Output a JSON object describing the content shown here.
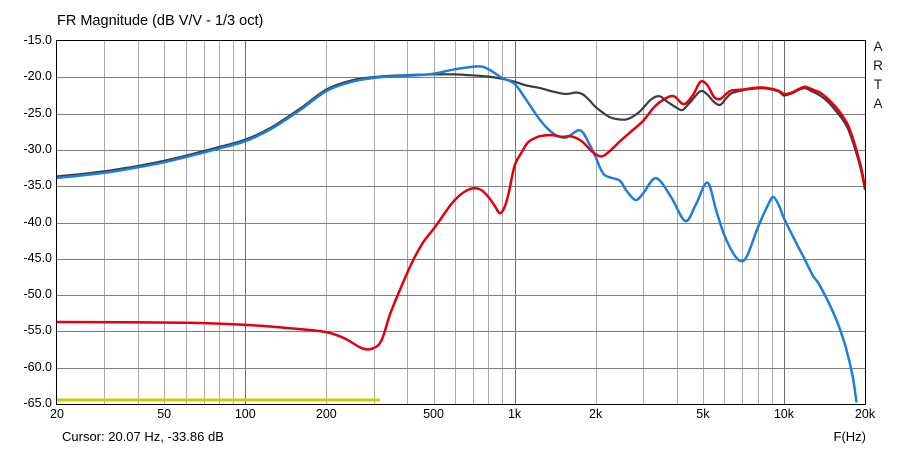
{
  "title": "FR Magnitude (dB V/V - 1/3 oct)",
  "watermark_letters": [
    "A",
    "R",
    "T",
    "A"
  ],
  "status": {
    "cursor": "Cursor: 20.07 Hz, -33.86 dB"
  },
  "colors": {
    "background": "#FFFFFF",
    "plot_border": "#000000",
    "grid_horizontal": "#7F7F7F",
    "grid_minor_vertical": "#ABABAB",
    "grid_major_vertical": "#6E6E6E",
    "trace_sum_black": "#3C3C3C",
    "trace_lowpass_blue": "#1E7EDC",
    "trace_highpass_red": "#E2000E",
    "marker_yellow": "#CCCC00"
  },
  "axes": {
    "x_unit_label": "F(Hz)",
    "f_min": 20,
    "f_max": 20000,
    "db_max": -15,
    "db_min": -65,
    "y_tick_labels": [
      "-15.0",
      "-20.0",
      "-25.0",
      "-30.0",
      "-35.0",
      "-40.0",
      "-45.0",
      "-50.0",
      "-55.0",
      "-60.0",
      "-65.0"
    ],
    "y_grid": [
      -20,
      -25,
      -30,
      -35,
      -40,
      -45,
      -50,
      -55,
      -60
    ],
    "x_ticks": [
      {
        "f": 20,
        "label": "20"
      },
      {
        "f": 50,
        "label": "50"
      },
      {
        "f": 100,
        "label": "100"
      },
      {
        "f": 200,
        "label": "200"
      },
      {
        "f": 500,
        "label": "500"
      },
      {
        "f": 1000,
        "label": "1k"
      },
      {
        "f": 2000,
        "label": "2k"
      },
      {
        "f": 5000,
        "label": "5k"
      },
      {
        "f": 10000,
        "label": "10k"
      },
      {
        "f": 20000,
        "label": "20k"
      }
    ],
    "x_grid_minor": [
      30,
      40,
      50,
      60,
      70,
      80,
      90,
      200,
      300,
      400,
      500,
      600,
      700,
      800,
      900,
      2000,
      3000,
      4000,
      5000,
      6000,
      7000,
      8000,
      9000
    ],
    "x_grid_major": [
      100,
      1000,
      10000
    ]
  },
  "chart_data": {
    "type": "line",
    "title": "FR Magnitude (dB V/V - 1/3 oct)",
    "xlabel": "F(Hz)",
    "ylabel": "dB V/V",
    "x_scale": "log",
    "x_range": [
      20,
      20000
    ],
    "y_range": [
      -65,
      -15
    ],
    "grid": true,
    "legend": "none",
    "series": [
      {
        "name": "summed-response-black",
        "color": "#3C3C3C",
        "width": 2.2,
        "points": [
          [
            20,
            -33.65
          ],
          [
            25,
            -33.3
          ],
          [
            32,
            -32.8
          ],
          [
            40,
            -32.2
          ],
          [
            50,
            -31.5
          ],
          [
            63,
            -30.6
          ],
          [
            80,
            -29.6
          ],
          [
            100,
            -28.6
          ],
          [
            125,
            -26.9
          ],
          [
            160,
            -24.3
          ],
          [
            200,
            -21.7
          ],
          [
            250,
            -20.4
          ],
          [
            315,
            -19.9
          ],
          [
            400,
            -19.7
          ],
          [
            500,
            -19.6
          ],
          [
            600,
            -19.6
          ],
          [
            735,
            -19.8
          ],
          [
            800,
            -19.9
          ],
          [
            900,
            -20.2
          ],
          [
            1000,
            -20.6
          ],
          [
            1100,
            -21.1
          ],
          [
            1250,
            -21.5
          ],
          [
            1400,
            -22.0
          ],
          [
            1550,
            -22.3
          ],
          [
            1700,
            -22.1
          ],
          [
            1800,
            -22.4
          ],
          [
            1900,
            -23.2
          ],
          [
            2000,
            -24.1
          ],
          [
            2150,
            -25.0
          ],
          [
            2300,
            -25.6
          ],
          [
            2600,
            -25.8
          ],
          [
            2900,
            -24.8
          ],
          [
            3200,
            -23.1
          ],
          [
            3450,
            -22.6
          ],
          [
            3700,
            -23.4
          ],
          [
            4000,
            -24.2
          ],
          [
            4200,
            -24.5
          ],
          [
            4500,
            -23.4
          ],
          [
            4900,
            -21.9
          ],
          [
            5200,
            -22.4
          ],
          [
            5500,
            -23.4
          ],
          [
            5800,
            -23.8
          ],
          [
            6100,
            -22.9
          ],
          [
            6400,
            -22.2
          ],
          [
            7000,
            -21.8
          ],
          [
            7600,
            -21.6
          ],
          [
            8300,
            -21.5
          ],
          [
            9000,
            -21.7
          ],
          [
            9600,
            -22.0
          ],
          [
            10000,
            -22.5
          ],
          [
            10700,
            -22.2
          ],
          [
            11400,
            -21.7
          ],
          [
            12000,
            -21.5
          ],
          [
            12800,
            -22.0
          ],
          [
            13600,
            -22.5
          ],
          [
            14500,
            -23.3
          ],
          [
            15500,
            -24.5
          ],
          [
            16500,
            -25.8
          ],
          [
            17300,
            -27.1
          ],
          [
            18100,
            -29.1
          ],
          [
            18800,
            -31.1
          ],
          [
            19400,
            -33.0
          ],
          [
            20000,
            -35.5
          ]
        ]
      },
      {
        "name": "lowpass-response-blue",
        "color": "#1E7EDC",
        "width": 2.5,
        "points": [
          [
            20,
            -33.86
          ],
          [
            25,
            -33.5
          ],
          [
            32,
            -33.0
          ],
          [
            40,
            -32.4
          ],
          [
            50,
            -31.7
          ],
          [
            63,
            -30.8
          ],
          [
            80,
            -29.8
          ],
          [
            100,
            -28.8
          ],
          [
            125,
            -27.1
          ],
          [
            160,
            -24.5
          ],
          [
            200,
            -21.9
          ],
          [
            250,
            -20.6
          ],
          [
            315,
            -20.0
          ],
          [
            400,
            -19.8
          ],
          [
            500,
            -19.5
          ],
          [
            600,
            -18.9
          ],
          [
            735,
            -18.5
          ],
          [
            800,
            -18.9
          ],
          [
            900,
            -20.1
          ],
          [
            1000,
            -20.9
          ],
          [
            1100,
            -23.0
          ],
          [
            1250,
            -26.0
          ],
          [
            1400,
            -27.8
          ],
          [
            1550,
            -28.3
          ],
          [
            1750,
            -27.3
          ],
          [
            1900,
            -29.3
          ],
          [
            2000,
            -31.0
          ],
          [
            2150,
            -33.4
          ],
          [
            2450,
            -34.2
          ],
          [
            2600,
            -35.6
          ],
          [
            2810,
            -36.9
          ],
          [
            3000,
            -36.0
          ],
          [
            3350,
            -33.9
          ],
          [
            3800,
            -36.4
          ],
          [
            4300,
            -39.8
          ],
          [
            4700,
            -37.6
          ],
          [
            5200,
            -34.5
          ],
          [
            5600,
            -38.3
          ],
          [
            6000,
            -41.7
          ],
          [
            6500,
            -44.3
          ],
          [
            6900,
            -45.3
          ],
          [
            7300,
            -44.6
          ],
          [
            8000,
            -40.7
          ],
          [
            8800,
            -37.3
          ],
          [
            9150,
            -36.5
          ],
          [
            9600,
            -37.7
          ],
          [
            10000,
            -39.4
          ],
          [
            11000,
            -42.5
          ],
          [
            12000,
            -45.2
          ],
          [
            12800,
            -47.3
          ],
          [
            13400,
            -48.3
          ],
          [
            14200,
            -50.0
          ],
          [
            15000,
            -51.8
          ],
          [
            16000,
            -54.3
          ],
          [
            17000,
            -57.3
          ],
          [
            18000,
            -61.2
          ],
          [
            18600,
            -64.8
          ]
        ]
      },
      {
        "name": "highpass-response-red",
        "color": "#E2000E",
        "width": 2.5,
        "points": [
          [
            20,
            -53.7
          ],
          [
            60,
            -53.8
          ],
          [
            100,
            -54.1
          ],
          [
            150,
            -54.6
          ],
          [
            200,
            -55.1
          ],
          [
            235,
            -56.0
          ],
          [
            270,
            -57.3
          ],
          [
            295,
            -57.4
          ],
          [
            320,
            -56.3
          ],
          [
            345,
            -52.6
          ],
          [
            380,
            -48.8
          ],
          [
            420,
            -45.2
          ],
          [
            460,
            -42.6
          ],
          [
            500,
            -40.9
          ],
          [
            530,
            -39.6
          ],
          [
            560,
            -38.3
          ],
          [
            600,
            -36.9
          ],
          [
            650,
            -35.8
          ],
          [
            700,
            -35.3
          ],
          [
            750,
            -35.5
          ],
          [
            800,
            -36.5
          ],
          [
            840,
            -37.6
          ],
          [
            880,
            -38.7
          ],
          [
            915,
            -38.0
          ],
          [
            950,
            -36.0
          ],
          [
            1000,
            -32.2
          ],
          [
            1060,
            -30.4
          ],
          [
            1120,
            -29.0
          ],
          [
            1200,
            -28.3
          ],
          [
            1300,
            -28.0
          ],
          [
            1400,
            -28.0
          ],
          [
            1500,
            -28.2
          ],
          [
            1600,
            -28.1
          ],
          [
            1700,
            -28.4
          ],
          [
            1800,
            -29.0
          ],
          [
            1950,
            -30.3
          ],
          [
            2100,
            -30.9
          ],
          [
            2250,
            -30.2
          ],
          [
            2450,
            -28.9
          ],
          [
            2700,
            -27.5
          ],
          [
            3000,
            -26.0
          ],
          [
            3300,
            -24.1
          ],
          [
            3600,
            -23.0
          ],
          [
            3900,
            -22.6
          ],
          [
            4250,
            -23.7
          ],
          [
            4600,
            -22.4
          ],
          [
            4900,
            -20.6
          ],
          [
            5200,
            -21.1
          ],
          [
            5500,
            -22.7
          ],
          [
            5800,
            -23.0
          ],
          [
            6100,
            -22.3
          ],
          [
            6400,
            -21.8
          ],
          [
            7000,
            -21.7
          ],
          [
            7600,
            -21.5
          ],
          [
            8300,
            -21.4
          ],
          [
            9000,
            -21.6
          ],
          [
            9600,
            -21.9
          ],
          [
            10000,
            -22.3
          ],
          [
            10700,
            -22.1
          ],
          [
            11400,
            -21.6
          ],
          [
            12000,
            -21.3
          ],
          [
            12800,
            -21.7
          ],
          [
            13600,
            -22.1
          ],
          [
            14500,
            -22.9
          ],
          [
            15500,
            -24.0
          ],
          [
            16500,
            -25.3
          ],
          [
            17300,
            -26.6
          ],
          [
            18100,
            -28.6
          ],
          [
            18800,
            -30.7
          ],
          [
            19400,
            -32.6
          ],
          [
            20000,
            -35.2
          ]
        ]
      },
      {
        "name": "floor-marker-yellow",
        "color": "#CCCC00",
        "width": 3,
        "points": [
          [
            20,
            -64.45
          ],
          [
            316,
            -64.45
          ]
        ]
      }
    ]
  }
}
